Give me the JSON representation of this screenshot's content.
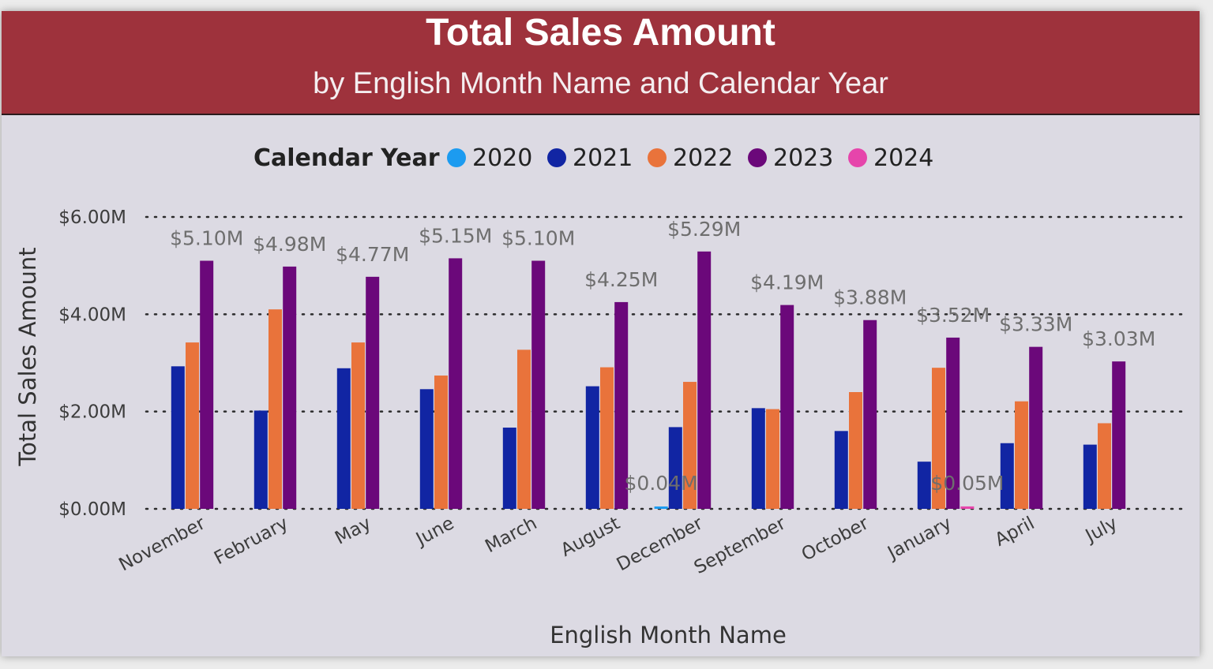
{
  "chart_data": {
    "type": "bar",
    "title": "Total Sales Amount",
    "subtitle": "by English Month Name and Calendar Year",
    "xlabel": "English Month Name",
    "ylabel": "Total Sales Amount",
    "legend_title": "Calendar Year",
    "legend_position": "top",
    "grid": true,
    "ylim": [
      0,
      6
    ],
    "y_ticks": [
      {
        "value": 0,
        "label": "$0.00M"
      },
      {
        "value": 2,
        "label": "$2.00M"
      },
      {
        "value": 4,
        "label": "$4.00M"
      },
      {
        "value": 6,
        "label": "$6.00M"
      }
    ],
    "categories": [
      "November",
      "February",
      "May",
      "June",
      "March",
      "August",
      "December",
      "September",
      "October",
      "January",
      "April",
      "July"
    ],
    "series": [
      {
        "name": "2020",
        "color": "#1c9bf0",
        "values": [
          0,
          0,
          0,
          0,
          0,
          0,
          0.04,
          0,
          0,
          0,
          0,
          0
        ]
      },
      {
        "name": "2021",
        "color": "#1125a3",
        "values": [
          2.93,
          2.02,
          2.89,
          2.46,
          1.67,
          2.52,
          1.68,
          2.07,
          1.6,
          0.97,
          1.35,
          1.32
        ]
      },
      {
        "name": "2022",
        "color": "#e9733b",
        "values": [
          3.42,
          4.1,
          3.42,
          2.74,
          3.27,
          2.91,
          2.61,
          2.05,
          2.4,
          2.9,
          2.21,
          1.76
        ]
      },
      {
        "name": "2023",
        "color": "#6b087a",
        "values": [
          5.1,
          4.98,
          4.77,
          5.15,
          5.1,
          4.25,
          5.29,
          4.19,
          3.88,
          3.52,
          3.33,
          3.03
        ]
      },
      {
        "name": "2024",
        "color": "#e645ab",
        "values": [
          0,
          0,
          0,
          0,
          0,
          0,
          0,
          0,
          0,
          0.05,
          0,
          0
        ]
      }
    ],
    "data_labels": [
      {
        "category": "November",
        "series": "2023",
        "text": "$5.10M"
      },
      {
        "category": "February",
        "series": "2023",
        "text": "$4.98M"
      },
      {
        "category": "May",
        "series": "2023",
        "text": "$4.77M"
      },
      {
        "category": "June",
        "series": "2023",
        "text": "$5.15M"
      },
      {
        "category": "March",
        "series": "2023",
        "text": "$5.10M"
      },
      {
        "category": "August",
        "series": "2023",
        "text": "$4.25M"
      },
      {
        "category": "December",
        "series": "2020",
        "text": "$0.04M"
      },
      {
        "category": "December",
        "series": "2023",
        "text": "$5.29M"
      },
      {
        "category": "September",
        "series": "2023",
        "text": "$4.19M"
      },
      {
        "category": "October",
        "series": "2023",
        "text": "$3.88M"
      },
      {
        "category": "January",
        "series": "2023",
        "text": "$3.52M"
      },
      {
        "category": "January",
        "series": "2024",
        "text": "$0.05M"
      },
      {
        "category": "April",
        "series": "2023",
        "text": "$3.33M"
      },
      {
        "category": "July",
        "series": "2023",
        "text": "$3.03M"
      }
    ]
  }
}
